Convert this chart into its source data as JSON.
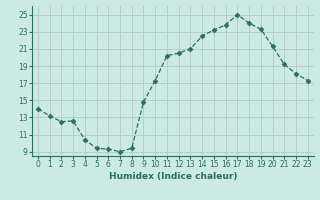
{
  "xlabel": "Humidex (Indice chaleur)",
  "ylabel": "",
  "x": [
    0,
    1,
    2,
    3,
    4,
    5,
    6,
    7,
    8,
    9,
    10,
    11,
    12,
    13,
    14,
    15,
    16,
    17,
    18,
    19,
    20,
    21,
    22,
    23
  ],
  "y": [
    14.0,
    13.2,
    12.5,
    12.6,
    10.4,
    9.4,
    9.3,
    9.0,
    9.4,
    14.8,
    17.3,
    20.2,
    20.5,
    21.0,
    22.5,
    23.2,
    23.8,
    25.0,
    24.0,
    23.3,
    21.3,
    19.2,
    18.1,
    17.3
  ],
  "line_color": "#2a6e5e",
  "marker": "D",
  "marker_size": 2.5,
  "bg_color": "#cceae4",
  "grid_color": "#b8cdc9",
  "ylim": [
    8.5,
    26
  ],
  "xlim": [
    -0.5,
    23.5
  ],
  "yticks": [
    9,
    11,
    13,
    15,
    17,
    19,
    21,
    23,
    25
  ],
  "xticks": [
    0,
    1,
    2,
    3,
    4,
    5,
    6,
    7,
    8,
    9,
    10,
    11,
    12,
    13,
    14,
    15,
    16,
    17,
    18,
    19,
    20,
    21,
    22,
    23
  ],
  "tick_fontsize": 5.5,
  "xlabel_fontsize": 6.5,
  "axis_color": "#2a6e5e",
  "spine_color": "#2a6e5e"
}
